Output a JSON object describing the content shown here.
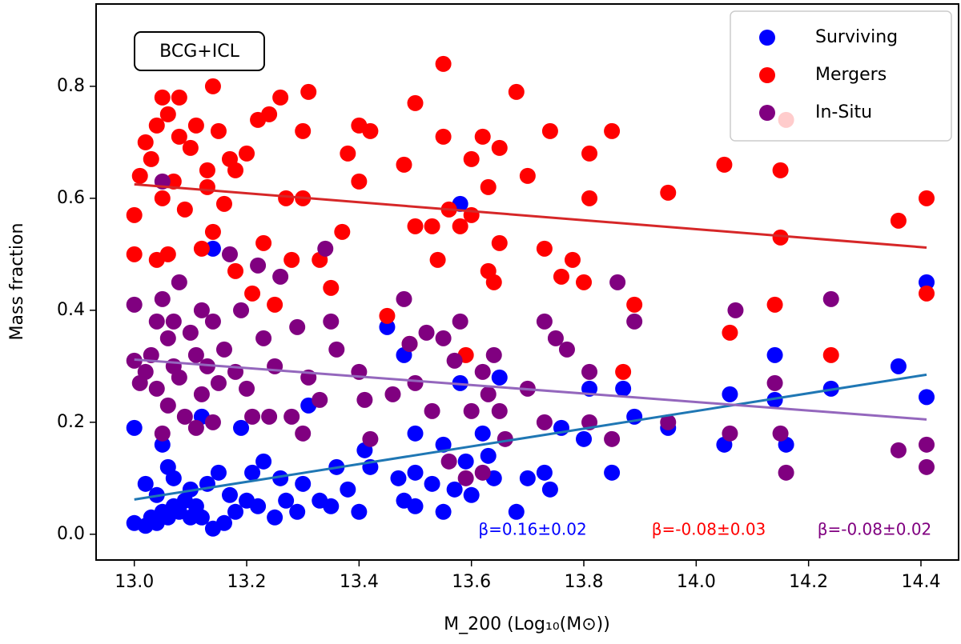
{
  "chart_data": {
    "type": "scatter",
    "x_label": "M_200 (Log₁₀(M⊙))",
    "y_label": "Mass fraction",
    "box_label": "BCG+ICL",
    "xlim": [
      12.932,
      14.467
    ],
    "ylim": [
      -0.046,
      0.947
    ],
    "xticks": [
      {
        "value": 13,
        "label": "13.0"
      },
      13.2,
      13.4,
      13.6,
      13.8,
      {
        "value": 14,
        "label": "14.0"
      },
      14.2,
      14.4
    ],
    "yticks": [
      {
        "value": 0,
        "label": "0.0"
      },
      0.2,
      0.4,
      0.6,
      0.8
    ],
    "legend": "upper right",
    "series": [
      {
        "name": "Surviving",
        "color": "#0000ff",
        "x": [
          13.0,
          13.0,
          13.02,
          13.02,
          13.03,
          13.04,
          13.04,
          13.05,
          13.05,
          13.06,
          13.06,
          13.07,
          13.07,
          13.08,
          13.09,
          13.1,
          13.1,
          13.11,
          13.12,
          13.12,
          13.13,
          13.14,
          13.14,
          13.15,
          13.16,
          13.17,
          13.18,
          13.19,
          13.2,
          13.21,
          13.22,
          13.23,
          13.25,
          13.26,
          13.27,
          13.29,
          13.3,
          13.31,
          13.33,
          13.35,
          13.36,
          13.38,
          13.4,
          13.41,
          13.42,
          13.45,
          13.47,
          13.48,
          13.48,
          13.5,
          13.5,
          13.5,
          13.53,
          13.55,
          13.55,
          13.57,
          13.58,
          13.58,
          13.59,
          13.6,
          13.62,
          13.63,
          13.64,
          13.65,
          13.68,
          13.7,
          13.73,
          13.74,
          13.76,
          13.8,
          13.81,
          13.85,
          13.87,
          13.89,
          13.95,
          14.05,
          14.06,
          14.14,
          14.14,
          14.16,
          14.24,
          14.36,
          14.41,
          14.41
        ],
        "values": [
          0.19,
          0.02,
          0.09,
          0.015,
          0.03,
          0.02,
          0.07,
          0.16,
          0.04,
          0.12,
          0.03,
          0.05,
          0.1,
          0.04,
          0.06,
          0.03,
          0.08,
          0.05,
          0.21,
          0.03,
          0.09,
          0.01,
          0.51,
          0.11,
          0.02,
          0.07,
          0.04,
          0.19,
          0.06,
          0.11,
          0.05,
          0.13,
          0.03,
          0.1,
          0.06,
          0.04,
          0.09,
          0.23,
          0.06,
          0.05,
          0.12,
          0.08,
          0.04,
          0.15,
          0.12,
          0.37,
          0.1,
          0.06,
          0.32,
          0.05,
          0.11,
          0.18,
          0.09,
          0.16,
          0.04,
          0.08,
          0.27,
          0.59,
          0.13,
          0.07,
          0.18,
          0.14,
          0.1,
          0.28,
          0.04,
          0.1,
          0.11,
          0.08,
          0.19,
          0.17,
          0.26,
          0.11,
          0.26,
          0.21,
          0.19,
          0.16,
          0.25,
          0.32,
          0.24,
          0.16,
          0.26,
          0.3,
          0.245,
          0.45
        ]
      },
      {
        "name": "Mergers",
        "color": "#ff0000",
        "x": [
          13.0,
          13.0,
          13.01,
          13.02,
          13.03,
          13.04,
          13.05,
          13.05,
          13.04,
          13.06,
          13.06,
          13.07,
          13.08,
          13.08,
          13.09,
          13.1,
          13.11,
          13.12,
          13.13,
          13.13,
          13.14,
          13.14,
          13.15,
          13.16,
          13.17,
          13.18,
          13.18,
          13.2,
          13.21,
          13.22,
          13.23,
          13.24,
          13.25,
          13.26,
          13.27,
          13.28,
          13.3,
          13.3,
          13.31,
          13.33,
          13.35,
          13.37,
          13.38,
          13.4,
          13.4,
          13.42,
          13.45,
          13.48,
          13.49,
          13.5,
          13.5,
          13.53,
          13.54,
          13.55,
          13.55,
          13.56,
          13.58,
          13.59,
          13.6,
          13.6,
          13.62,
          13.63,
          13.63,
          13.64,
          13.65,
          13.65,
          13.68,
          13.7,
          13.73,
          13.74,
          13.76,
          13.78,
          13.8,
          13.81,
          13.81,
          13.85,
          13.87,
          13.89,
          13.95,
          14.05,
          14.06,
          14.14,
          14.15,
          14.15,
          14.16,
          14.24,
          14.36,
          14.41,
          14.41
        ],
        "values": [
          0.57,
          0.5,
          0.64,
          0.7,
          0.67,
          0.73,
          0.78,
          0.6,
          0.49,
          0.75,
          0.5,
          0.63,
          0.71,
          0.78,
          0.58,
          0.69,
          0.73,
          0.51,
          0.62,
          0.65,
          0.8,
          0.54,
          0.72,
          0.59,
          0.67,
          0.47,
          0.65,
          0.68,
          0.43,
          0.74,
          0.52,
          0.75,
          0.41,
          0.78,
          0.6,
          0.49,
          0.6,
          0.72,
          0.79,
          0.49,
          0.44,
          0.54,
          0.68,
          0.73,
          0.63,
          0.72,
          0.39,
          0.66,
          0.34,
          0.77,
          0.55,
          0.55,
          0.49,
          0.71,
          0.84,
          0.58,
          0.55,
          0.32,
          0.57,
          0.67,
          0.71,
          0.62,
          0.47,
          0.45,
          0.69,
          0.52,
          0.79,
          0.64,
          0.51,
          0.72,
          0.46,
          0.49,
          0.45,
          0.6,
          0.68,
          0.72,
          0.29,
          0.41,
          0.61,
          0.66,
          0.36,
          0.41,
          0.53,
          0.65,
          0.74,
          0.32,
          0.56,
          0.6,
          0.43
        ]
      },
      {
        "name": "In-Situ",
        "color": "#800080",
        "x": [
          13.0,
          13.0,
          13.01,
          13.02,
          13.03,
          13.04,
          13.04,
          13.05,
          13.05,
          13.05,
          13.06,
          13.06,
          13.07,
          13.07,
          13.08,
          13.08,
          13.09,
          13.1,
          13.11,
          13.11,
          13.12,
          13.12,
          13.13,
          13.14,
          13.14,
          13.15,
          13.16,
          13.17,
          13.18,
          13.19,
          13.2,
          13.21,
          13.22,
          13.23,
          13.24,
          13.25,
          13.26,
          13.28,
          13.29,
          13.3,
          13.31,
          13.33,
          13.34,
          13.35,
          13.36,
          13.4,
          13.41,
          13.42,
          13.46,
          13.48,
          13.49,
          13.5,
          13.52,
          13.53,
          13.55,
          13.56,
          13.57,
          13.58,
          13.59,
          13.6,
          13.62,
          13.62,
          13.63,
          13.64,
          13.65,
          13.66,
          13.7,
          13.73,
          13.73,
          13.75,
          13.77,
          13.81,
          13.81,
          13.85,
          13.86,
          13.89,
          13.95,
          14.06,
          14.07,
          14.14,
          14.15,
          14.16,
          14.24,
          14.36,
          14.41,
          14.41
        ],
        "values": [
          0.41,
          0.31,
          0.27,
          0.29,
          0.32,
          0.38,
          0.26,
          0.63,
          0.42,
          0.18,
          0.23,
          0.35,
          0.3,
          0.38,
          0.45,
          0.28,
          0.21,
          0.36,
          0.19,
          0.32,
          0.25,
          0.4,
          0.3,
          0.38,
          0.2,
          0.27,
          0.33,
          0.5,
          0.29,
          0.4,
          0.26,
          0.21,
          0.48,
          0.35,
          0.21,
          0.3,
          0.46,
          0.21,
          0.37,
          0.18,
          0.28,
          0.24,
          0.51,
          0.38,
          0.33,
          0.29,
          0.24,
          0.17,
          0.25,
          0.42,
          0.34,
          0.27,
          0.36,
          0.22,
          0.35,
          0.13,
          0.31,
          0.38,
          0.1,
          0.22,
          0.11,
          0.29,
          0.25,
          0.32,
          0.22,
          0.17,
          0.26,
          0.2,
          0.38,
          0.35,
          0.33,
          0.29,
          0.2,
          0.17,
          0.45,
          0.38,
          0.2,
          0.18,
          0.4,
          0.27,
          0.18,
          0.11,
          0.42,
          0.15,
          0.16,
          0.12
        ]
      }
    ],
    "fits": [
      {
        "color": "#1f77b4",
        "x": [
          13.0,
          14.41
        ],
        "values": [
          0.062,
          0.285
        ]
      },
      {
        "color": "#d62728",
        "x": [
          13.0,
          14.41
        ],
        "values": [
          0.625,
          0.512
        ]
      },
      {
        "color": "#9467bd",
        "x": [
          13.0,
          14.41
        ],
        "values": [
          0.312,
          0.205
        ]
      }
    ],
    "annotations": [
      {
        "text": "β=0.16±0.02",
        "color": "#0000ff"
      },
      {
        "text": "β=-0.08±0.03",
        "color": "#ff0000"
      },
      {
        "text": "β=-0.08±0.02",
        "color": "#800080"
      }
    ]
  }
}
